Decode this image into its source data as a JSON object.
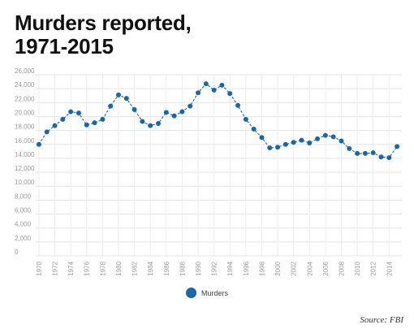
{
  "chart_data": {
    "type": "line",
    "title": "Murders reported,\n1971-2015",
    "source": "Source: FBI",
    "series": [
      {
        "name": "Murders",
        "color": "#1a68a3",
        "x": [
          1970,
          1971,
          1972,
          1973,
          1974,
          1975,
          1976,
          1977,
          1978,
          1979,
          1980,
          1981,
          1982,
          1983,
          1984,
          1985,
          1986,
          1987,
          1988,
          1989,
          1990,
          1991,
          1992,
          1993,
          1994,
          1995,
          1996,
          1997,
          1998,
          1999,
          2000,
          2001,
          2002,
          2003,
          2004,
          2005,
          2006,
          2007,
          2008,
          2009,
          2010,
          2011,
          2012,
          2013,
          2014,
          2015
        ],
        "values": [
          16000,
          17800,
          18700,
          19600,
          20700,
          20500,
          18800,
          19100,
          19600,
          21500,
          23100,
          22600,
          21000,
          19300,
          18700,
          19000,
          20600,
          20100,
          20700,
          21500,
          23400,
          24700,
          23800,
          24500,
          23300,
          21600,
          19600,
          18200,
          17000,
          15500,
          15600,
          16000,
          16300,
          16600,
          16200,
          16800,
          17300,
          17100,
          16500,
          15400,
          14700,
          14700,
          14800,
          14200,
          14100,
          15700
        ]
      }
    ],
    "x_ticks": [
      "1970",
      "1972",
      "1974",
      "1976",
      "1978",
      "1980",
      "1982",
      "1984",
      "1986",
      "1988",
      "1990",
      "1992",
      "1994",
      "1996",
      "1998",
      "2000",
      "2002",
      "2004",
      "2006",
      "2008",
      "2010",
      "2012",
      "2014"
    ],
    "y_ticks": [
      "0",
      "2,000",
      "4,000",
      "6,000",
      "8,000",
      "10,000",
      "12,000",
      "14,000",
      "16,000",
      "18,000",
      "20,000",
      "22,000",
      "24,000",
      "26,000"
    ],
    "xlim": [
      1969.6,
      2015.6
    ],
    "ylim": [
      0,
      26000
    ],
    "grid": true,
    "legend_position": "bottom-center"
  }
}
